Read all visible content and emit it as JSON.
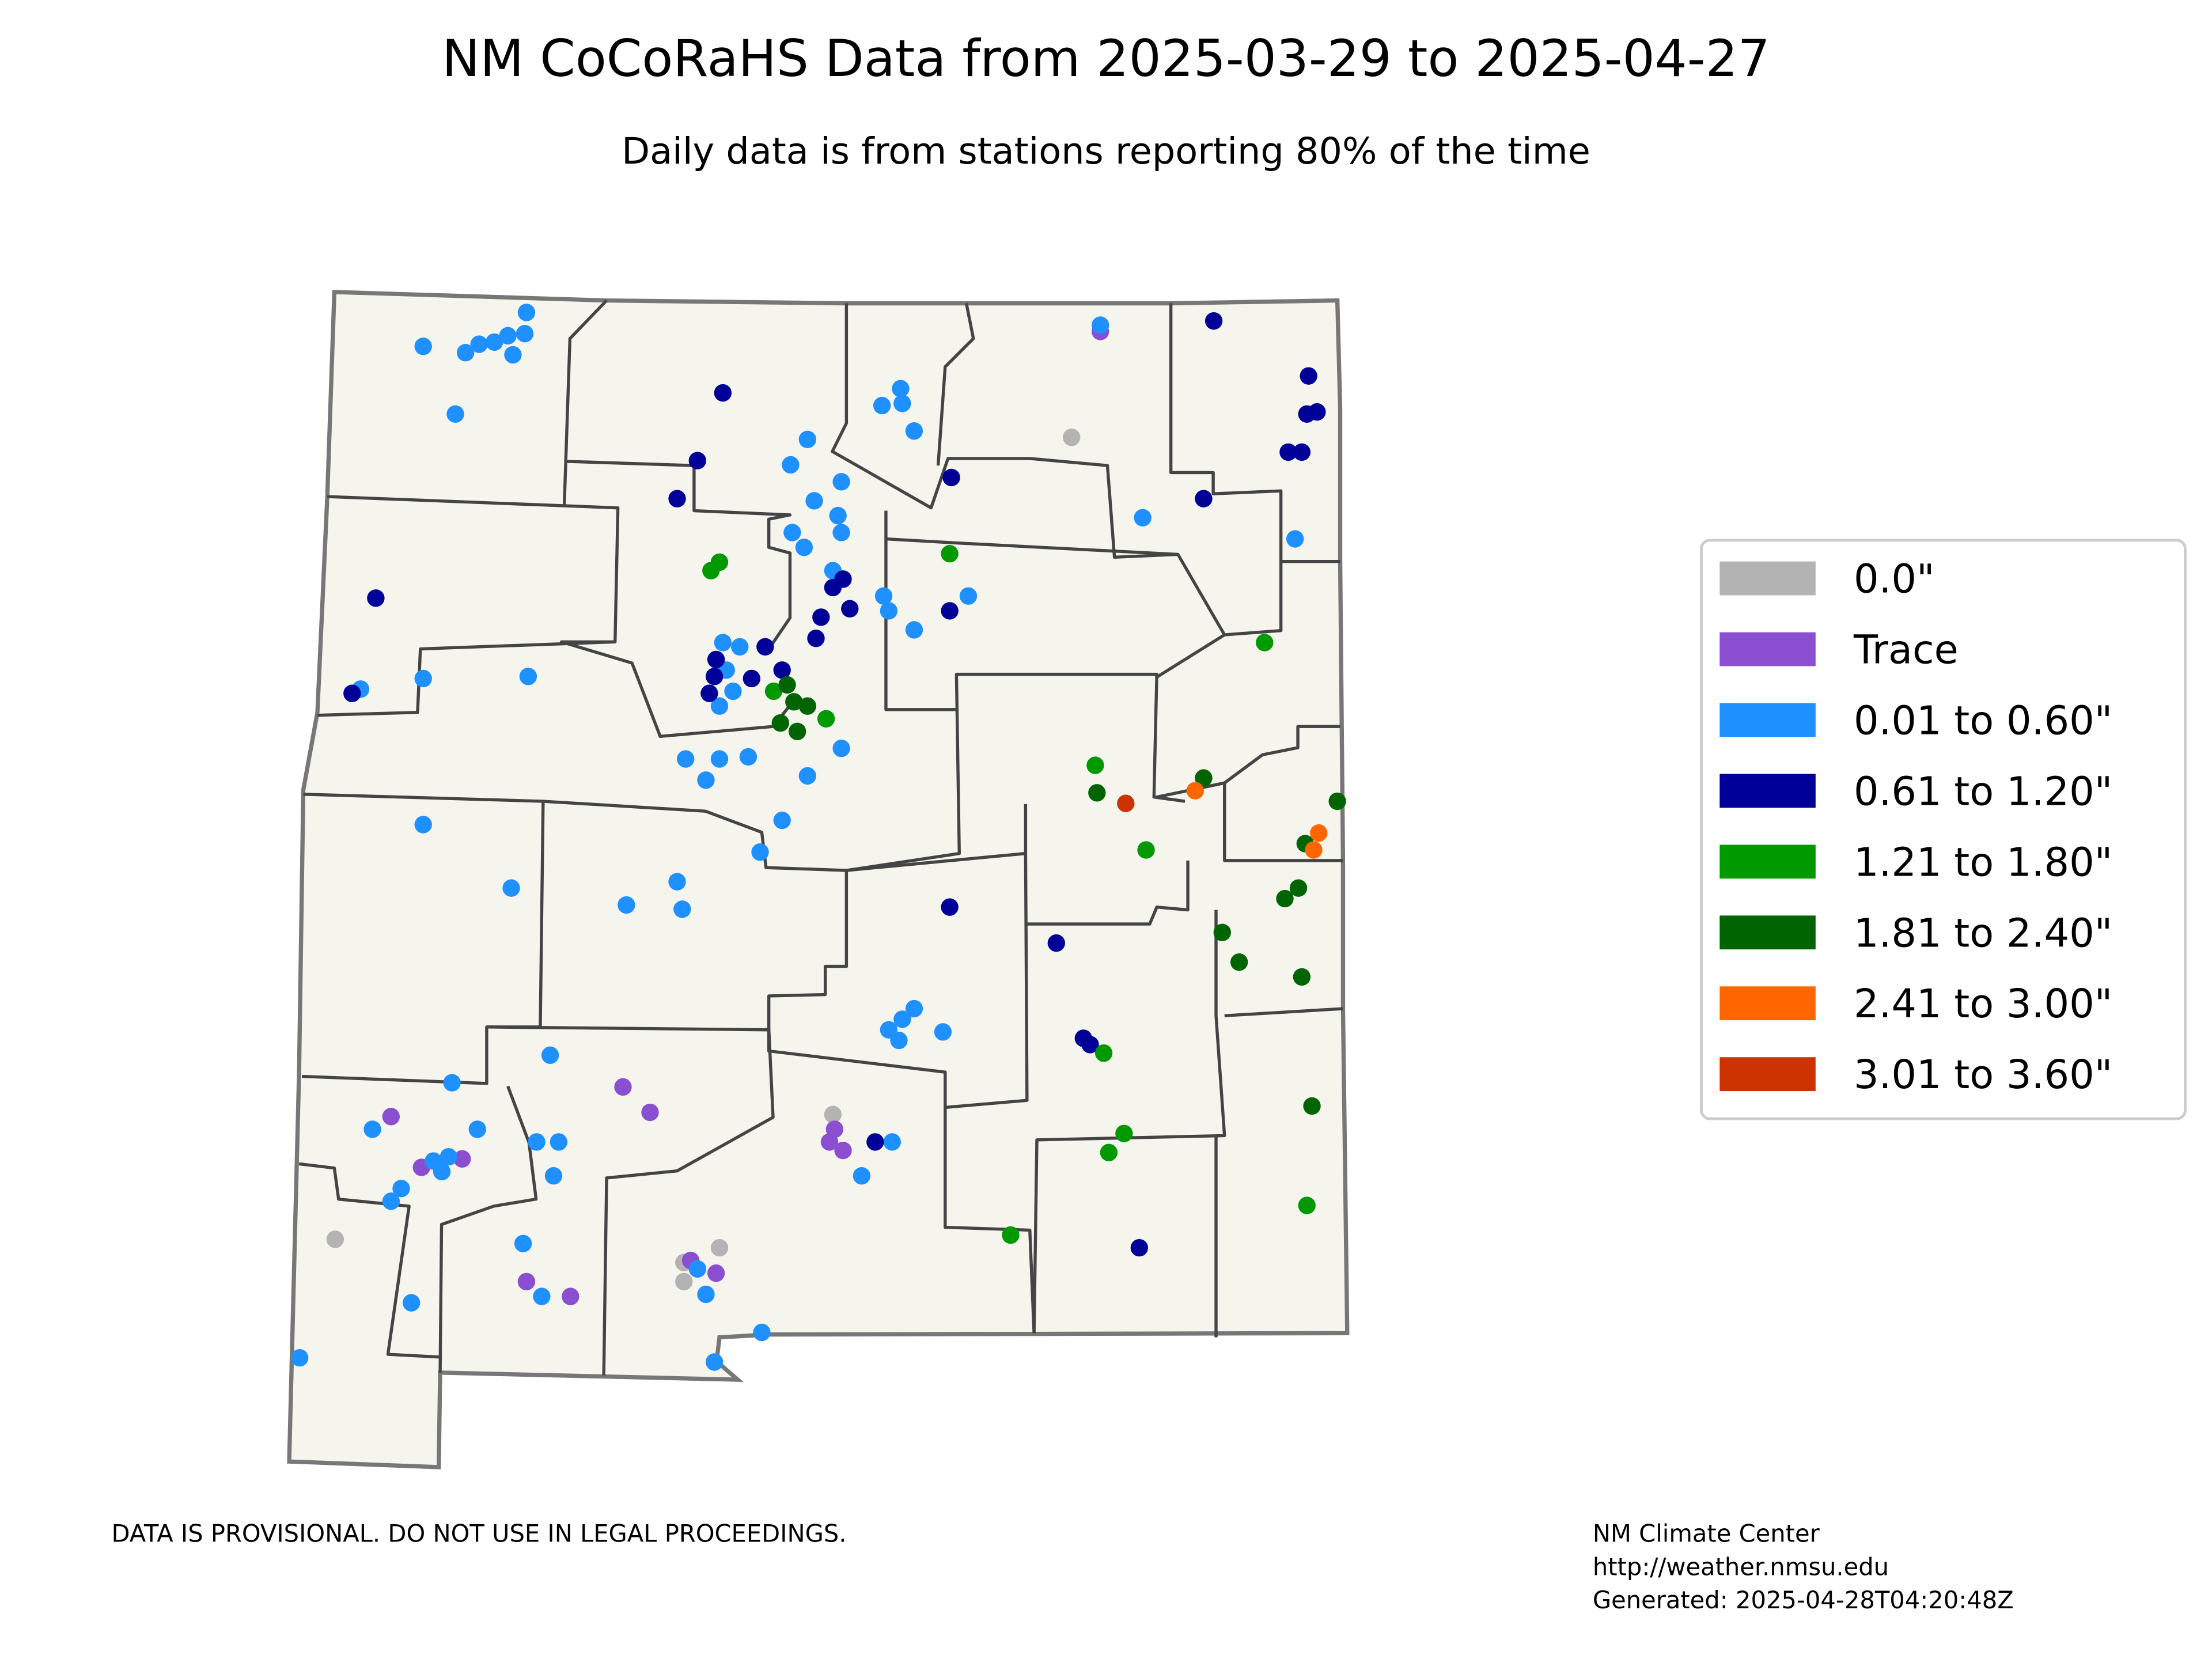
{
  "title": "NM CoCoRaHS Data from 2025-03-29 to 2025-04-27",
  "subtitle": "Daily data is from stations reporting 80% of the time",
  "legend": {
    "items": [
      {
        "label": "0.0\"",
        "color": "#b3b3b3",
        "stations": [
          [
            -104.57,
            36.32
          ],
          [
            -108.92,
            32.53
          ],
          [
            -105.98,
            33.12
          ],
          [
            -106.86,
            32.42
          ],
          [
            -106.65,
            32.49
          ],
          [
            -106.86,
            32.33
          ]
        ]
      },
      {
        "label": "Trace",
        "color": "#8a4fd0",
        "stations": [
          [
            -104.4,
            36.82
          ],
          [
            -108.59,
            33.11
          ],
          [
            -107.22,
            33.25
          ],
          [
            -107.06,
            33.13
          ],
          [
            -108.17,
            32.91
          ],
          [
            -108.41,
            32.87
          ],
          [
            -105.97,
            33.05
          ],
          [
            -106.0,
            32.99
          ],
          [
            -105.92,
            32.95
          ],
          [
            -107.79,
            32.33
          ],
          [
            -107.53,
            32.26
          ],
          [
            -106.82,
            32.43
          ],
          [
            -106.67,
            32.37
          ]
        ]
      },
      {
        "label": "0.01 to 0.60\"",
        "color": "#1e90ff",
        "stations": [
          [
            -107.79,
            36.91
          ],
          [
            -108.4,
            36.75
          ],
          [
            -108.15,
            36.72
          ],
          [
            -108.07,
            36.76
          ],
          [
            -107.98,
            36.77
          ],
          [
            -107.9,
            36.8
          ],
          [
            -107.8,
            36.81
          ],
          [
            -107.87,
            36.71
          ],
          [
            -108.21,
            36.43
          ],
          [
            -104.4,
            36.85
          ],
          [
            -105.58,
            36.55
          ],
          [
            -105.57,
            36.48
          ],
          [
            -105.69,
            36.47
          ],
          [
            -105.5,
            36.35
          ],
          [
            -106.13,
            36.31
          ],
          [
            -106.23,
            36.19
          ],
          [
            -105.93,
            36.11
          ],
          [
            -106.09,
            36.02
          ],
          [
            -105.95,
            35.95
          ],
          [
            -105.93,
            35.87
          ],
          [
            -106.22,
            35.87
          ],
          [
            -106.15,
            35.8
          ],
          [
            -105.98,
            35.69
          ],
          [
            -105.68,
            35.57
          ],
          [
            -105.65,
            35.5
          ],
          [
            -105.5,
            35.41
          ],
          [
            -105.18,
            35.57
          ],
          [
            -103.25,
            35.84
          ],
          [
            -104.15,
            35.94
          ],
          [
            -108.77,
            35.13
          ],
          [
            -108.4,
            35.18
          ],
          [
            -107.78,
            35.19
          ],
          [
            -106.63,
            35.35
          ],
          [
            -106.53,
            35.33
          ],
          [
            -106.61,
            35.22
          ],
          [
            -106.57,
            35.12
          ],
          [
            -106.65,
            35.05
          ],
          [
            -106.73,
            34.7
          ],
          [
            -106.85,
            34.8
          ],
          [
            -106.65,
            34.8
          ],
          [
            -106.48,
            34.81
          ],
          [
            -106.13,
            34.72
          ],
          [
            -105.93,
            34.85
          ],
          [
            -106.28,
            34.51
          ],
          [
            -106.41,
            34.36
          ],
          [
            -108.4,
            34.49
          ],
          [
            -107.88,
            34.19
          ],
          [
            -107.2,
            34.11
          ],
          [
            -106.9,
            34.22
          ],
          [
            -106.87,
            34.09
          ],
          [
            -105.5,
            33.62
          ],
          [
            -105.57,
            33.57
          ],
          [
            -105.65,
            33.52
          ],
          [
            -105.59,
            33.47
          ],
          [
            -105.33,
            33.51
          ],
          [
            -107.65,
            33.4
          ],
          [
            -108.23,
            33.27
          ],
          [
            -108.7,
            33.05
          ],
          [
            -108.08,
            33.05
          ],
          [
            -107.73,
            32.99
          ],
          [
            -107.6,
            32.99
          ],
          [
            -107.63,
            32.83
          ],
          [
            -108.34,
            32.9
          ],
          [
            -108.25,
            32.92
          ],
          [
            -108.29,
            32.85
          ],
          [
            -108.53,
            32.77
          ],
          [
            -108.59,
            32.71
          ],
          [
            -107.81,
            32.51
          ],
          [
            -107.7,
            32.26
          ],
          [
            -108.47,
            32.23
          ],
          [
            -109.13,
            31.97
          ],
          [
            -106.68,
            31.95
          ],
          [
            -106.4,
            32.09
          ],
          [
            -106.73,
            32.27
          ],
          [
            -106.78,
            32.39
          ],
          [
            -105.63,
            32.99
          ],
          [
            -105.81,
            32.83
          ]
        ]
      },
      {
        "label": "0.61 to 1.20\"",
        "color": "#000099",
        "stations": [
          [
            -103.73,
            36.87
          ],
          [
            -103.17,
            36.61
          ],
          [
            -103.18,
            36.43
          ],
          [
            -103.12,
            36.44
          ],
          [
            -103.29,
            36.25
          ],
          [
            -103.21,
            36.25
          ],
          [
            -103.79,
            36.03
          ],
          [
            -106.63,
            36.53
          ],
          [
            -106.78,
            36.21
          ],
          [
            -106.9,
            36.03
          ],
          [
            -105.28,
            36.13
          ],
          [
            -108.68,
            35.56
          ],
          [
            -108.82,
            35.11
          ],
          [
            -105.98,
            35.61
          ],
          [
            -105.92,
            35.65
          ],
          [
            -105.88,
            35.51
          ],
          [
            -106.05,
            35.47
          ],
          [
            -105.29,
            35.5
          ],
          [
            -106.08,
            35.37
          ],
          [
            -106.67,
            35.27
          ],
          [
            -106.68,
            35.19
          ],
          [
            -106.71,
            35.11
          ],
          [
            -106.46,
            35.18
          ],
          [
            -106.38,
            35.33
          ],
          [
            -106.28,
            35.22
          ],
          [
            -105.29,
            34.1
          ],
          [
            -104.66,
            33.93
          ],
          [
            -104.5,
            33.48
          ],
          [
            -104.46,
            33.45
          ],
          [
            -105.73,
            32.99
          ],
          [
            -104.17,
            32.49
          ]
        ]
      },
      {
        "label": "1.21 to 1.80\"",
        "color": "#009900",
        "stations": [
          [
            -106.7,
            35.69
          ],
          [
            -106.65,
            35.73
          ],
          [
            -105.29,
            35.77
          ],
          [
            -103.43,
            35.35
          ],
          [
            -106.33,
            35.12
          ],
          [
            -106.02,
            34.99
          ],
          [
            -104.43,
            34.77
          ],
          [
            -104.13,
            34.37
          ],
          [
            -104.38,
            33.41
          ],
          [
            -104.26,
            33.03
          ],
          [
            -104.35,
            32.94
          ],
          [
            -104.93,
            32.55
          ],
          [
            -103.18,
            32.69
          ]
        ]
      },
      {
        "label": "1.81 to 2.40\"",
        "color": "#006400",
        "stations": [
          [
            -106.25,
            35.15
          ],
          [
            -106.21,
            35.07
          ],
          [
            -106.13,
            35.05
          ],
          [
            -106.29,
            34.97
          ],
          [
            -106.19,
            34.93
          ],
          [
            -104.42,
            34.64
          ],
          [
            -103.79,
            34.71
          ],
          [
            -103.0,
            34.6
          ],
          [
            -103.19,
            34.4
          ],
          [
            -103.31,
            34.14
          ],
          [
            -103.23,
            34.19
          ],
          [
            -103.68,
            33.98
          ],
          [
            -103.58,
            33.84
          ],
          [
            -103.21,
            33.77
          ],
          [
            -103.15,
            33.16
          ]
        ]
      },
      {
        "label": "2.41 to 3.00\"",
        "color": "#ff6600",
        "stations": [
          [
            -103.84,
            34.65
          ],
          [
            -103.11,
            34.45
          ],
          [
            -103.14,
            34.37
          ]
        ]
      },
      {
        "label": "3.01 to 3.60\"",
        "color": "#cc3300",
        "stations": [
          [
            -104.25,
            34.59
          ]
        ]
      }
    ]
  },
  "footer": {
    "disclaimer": "DATA IS PROVISIONAL. DO NOT USE IN LEGAL PROCEEDINGS.",
    "credits": [
      "NM Climate Center",
      "http://weather.nmsu.edu",
      "Generated: 2025-04-28T04:20:48Z"
    ]
  }
}
